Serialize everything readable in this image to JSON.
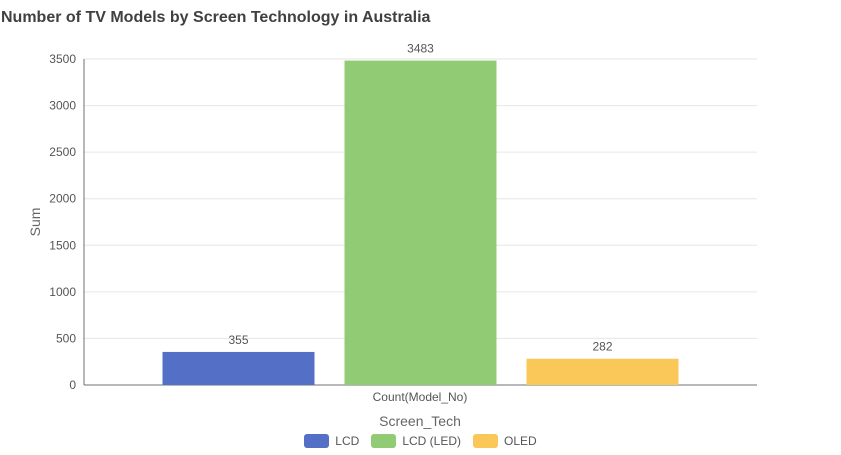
{
  "chart_data": {
    "type": "bar",
    "title": "Number of TV Models by Screen Technology in Australia",
    "xlabel": "Screen_Tech",
    "ylabel": "Sum",
    "categories": [
      "Count(Model_No)"
    ],
    "series": [
      {
        "name": "LCD",
        "values": [
          355
        ],
        "color": "#5470c6"
      },
      {
        "name": "LCD (LED)",
        "values": [
          3483
        ],
        "color": "#91cc75"
      },
      {
        "name": "OLED",
        "values": [
          282
        ],
        "color": "#fac858"
      }
    ],
    "yticks": [
      0,
      500,
      1000,
      1500,
      2000,
      2500,
      3000,
      3500
    ],
    "ylim": [
      0,
      3500
    ],
    "grid": true,
    "legend_position": "bottom"
  }
}
